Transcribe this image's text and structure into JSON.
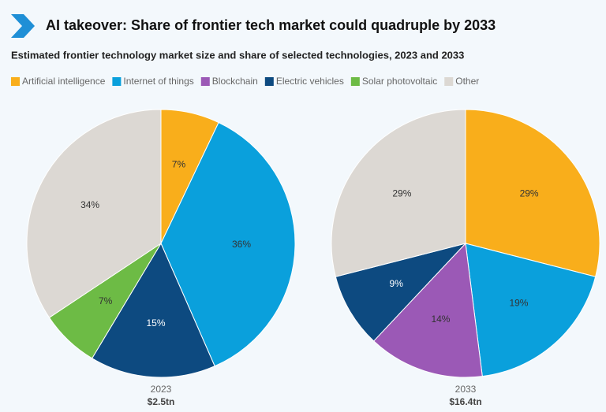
{
  "title": "AI takeover: Share of frontier tech market could quadruple by 2033",
  "subtitle": "Estimated frontier technology market size and share of selected technologies, 2023 and 2033",
  "chart_data": [
    {
      "type": "pie",
      "categories": [
        "Artificial intelligence",
        "Internet of things",
        "Blockchain",
        "Electric vehicles",
        "Solar photovoltaic",
        "Other"
      ],
      "colors": [
        "#f9ae1b",
        "#0aa0dc",
        "#9b59b6",
        "#0d4a80",
        "#6dbb45",
        "#dcd8d3"
      ],
      "values": [
        7,
        36,
        0,
        15,
        7,
        34
      ],
      "value_labels": [
        "7%",
        "36%",
        null,
        "15%",
        "7%",
        "34%"
      ],
      "caption": "2023",
      "total": "$2.5tn"
    },
    {
      "type": "pie",
      "categories": [
        "Artificial intelligence",
        "Internet of things",
        "Blockchain",
        "Electric vehicles",
        "Solar photovoltaic",
        "Other"
      ],
      "colors": [
        "#f9ae1b",
        "#0aa0dc",
        "#9b59b6",
        "#0d4a80",
        "#6dbb45",
        "#dcd8d3"
      ],
      "values": [
        29,
        19,
        14,
        9,
        0,
        29
      ],
      "value_labels": [
        "29%",
        "19%",
        "14%",
        "9%",
        null,
        "29%"
      ],
      "caption": "2033",
      "total": "$16.4tn"
    }
  ]
}
